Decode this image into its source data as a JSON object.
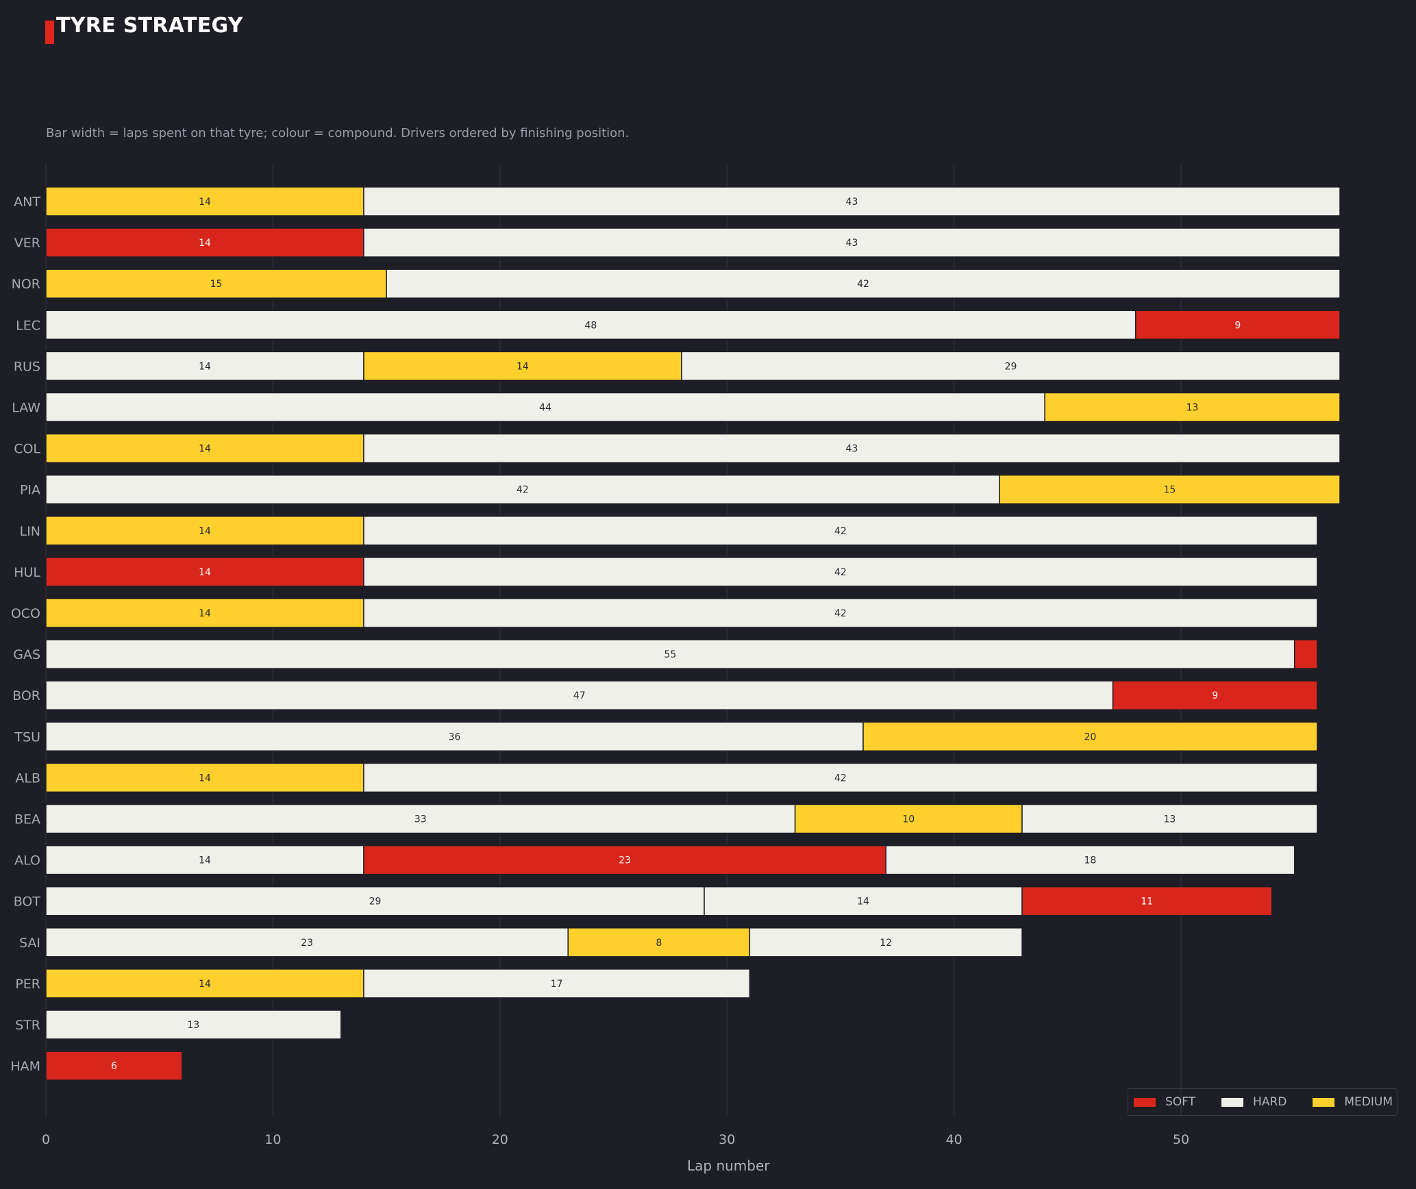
{
  "title": "TYRE STRATEGY",
  "subtitle": "Bar width = laps spent on that tyre; colour = compound. Drivers ordered by finishing position.",
  "colors": {
    "background": "#1e1e26",
    "accent": "#e1261c",
    "SOFT": "#d9261c",
    "HARD": "#f0f0eb",
    "MEDIUM": "#fdd02e",
    "grid": "#2e2e38"
  },
  "legend": [
    {
      "label": "SOFT",
      "compound": "SOFT"
    },
    {
      "label": "HARD",
      "compound": "HARD"
    },
    {
      "label": "MEDIUM",
      "compound": "MEDIUM"
    }
  ],
  "chart_data": {
    "type": "bar",
    "orientation": "horizontal",
    "stacked": true,
    "xlabel": "Lap number",
    "ylabel": "",
    "xlim": [
      0,
      59.6
    ],
    "xticks": [
      0,
      10,
      20,
      30,
      40,
      50
    ],
    "grid": "vertical",
    "legend_position": "bottom-right",
    "drivers": [
      {
        "driver": "ANT",
        "stints": [
          {
            "compound": "MEDIUM",
            "laps": 14,
            "label": "14"
          },
          {
            "compound": "HARD",
            "laps": 43,
            "label": "43"
          }
        ]
      },
      {
        "driver": "VER",
        "stints": [
          {
            "compound": "SOFT",
            "laps": 14,
            "label": "14"
          },
          {
            "compound": "HARD",
            "laps": 43,
            "label": "43"
          }
        ]
      },
      {
        "driver": "NOR",
        "stints": [
          {
            "compound": "MEDIUM",
            "laps": 15,
            "label": "15"
          },
          {
            "compound": "HARD",
            "laps": 42,
            "label": "42"
          }
        ]
      },
      {
        "driver": "LEC",
        "stints": [
          {
            "compound": "HARD",
            "laps": 48,
            "label": "48"
          },
          {
            "compound": "SOFT",
            "laps": 9,
            "label": "9"
          }
        ]
      },
      {
        "driver": "RUS",
        "stints": [
          {
            "compound": "HARD",
            "laps": 14,
            "label": "14"
          },
          {
            "compound": "MEDIUM",
            "laps": 14,
            "label": "14"
          },
          {
            "compound": "HARD",
            "laps": 29,
            "label": "29"
          }
        ]
      },
      {
        "driver": "LAW",
        "stints": [
          {
            "compound": "HARD",
            "laps": 44,
            "label": "44"
          },
          {
            "compound": "MEDIUM",
            "laps": 13,
            "label": "13"
          }
        ]
      },
      {
        "driver": "COL",
        "stints": [
          {
            "compound": "MEDIUM",
            "laps": 14,
            "label": "14"
          },
          {
            "compound": "HARD",
            "laps": 43,
            "label": "43"
          }
        ]
      },
      {
        "driver": "PIA",
        "stints": [
          {
            "compound": "HARD",
            "laps": 42,
            "label": "42"
          },
          {
            "compound": "MEDIUM",
            "laps": 15,
            "label": "15"
          }
        ]
      },
      {
        "driver": "LIN",
        "stints": [
          {
            "compound": "MEDIUM",
            "laps": 14,
            "label": "14"
          },
          {
            "compound": "HARD",
            "laps": 42,
            "label": "42"
          }
        ]
      },
      {
        "driver": "HUL",
        "stints": [
          {
            "compound": "SOFT",
            "laps": 14,
            "label": "14"
          },
          {
            "compound": "HARD",
            "laps": 42,
            "label": "42"
          }
        ]
      },
      {
        "driver": "OCO",
        "stints": [
          {
            "compound": "MEDIUM",
            "laps": 14,
            "label": "14"
          },
          {
            "compound": "HARD",
            "laps": 42,
            "label": "42"
          }
        ]
      },
      {
        "driver": "GAS",
        "stints": [
          {
            "compound": "HARD",
            "laps": 55,
            "label": "55"
          },
          {
            "compound": "SOFT",
            "laps": 1,
            "label": ""
          }
        ]
      },
      {
        "driver": "BOR",
        "stints": [
          {
            "compound": "HARD",
            "laps": 47,
            "label": "47"
          },
          {
            "compound": "SOFT",
            "laps": 9,
            "label": "9"
          }
        ]
      },
      {
        "driver": "TSU",
        "stints": [
          {
            "compound": "HARD",
            "laps": 36,
            "label": "36"
          },
          {
            "compound": "MEDIUM",
            "laps": 20,
            "label": "20"
          }
        ]
      },
      {
        "driver": "ALB",
        "stints": [
          {
            "compound": "MEDIUM",
            "laps": 14,
            "label": "14"
          },
          {
            "compound": "HARD",
            "laps": 42,
            "label": "42"
          }
        ]
      },
      {
        "driver": "BEA",
        "stints": [
          {
            "compound": "HARD",
            "laps": 33,
            "label": "33"
          },
          {
            "compound": "MEDIUM",
            "laps": 10,
            "label": "10"
          },
          {
            "compound": "HARD",
            "laps": 13,
            "label": "13"
          }
        ]
      },
      {
        "driver": "ALO",
        "stints": [
          {
            "compound": "HARD",
            "laps": 14,
            "label": "14"
          },
          {
            "compound": "SOFT",
            "laps": 23,
            "label": "23"
          },
          {
            "compound": "HARD",
            "laps": 18,
            "label": "18"
          }
        ]
      },
      {
        "driver": "BOT",
        "stints": [
          {
            "compound": "HARD",
            "laps": 29,
            "label": "29"
          },
          {
            "compound": "HARD",
            "laps": 14,
            "label": "14"
          },
          {
            "compound": "SOFT",
            "laps": 11,
            "label": "11"
          }
        ]
      },
      {
        "driver": "SAI",
        "stints": [
          {
            "compound": "HARD",
            "laps": 23,
            "label": "23"
          },
          {
            "compound": "MEDIUM",
            "laps": 8,
            "label": "8"
          },
          {
            "compound": "HARD",
            "laps": 12,
            "label": "12"
          }
        ]
      },
      {
        "driver": "PER",
        "stints": [
          {
            "compound": "MEDIUM",
            "laps": 14,
            "label": "14"
          },
          {
            "compound": "HARD",
            "laps": 17,
            "label": "17"
          }
        ]
      },
      {
        "driver": "STR",
        "stints": [
          {
            "compound": "HARD",
            "laps": 13,
            "label": "13"
          }
        ]
      },
      {
        "driver": "HAM",
        "stints": [
          {
            "compound": "SOFT",
            "laps": 6,
            "label": "6"
          }
        ]
      }
    ]
  }
}
